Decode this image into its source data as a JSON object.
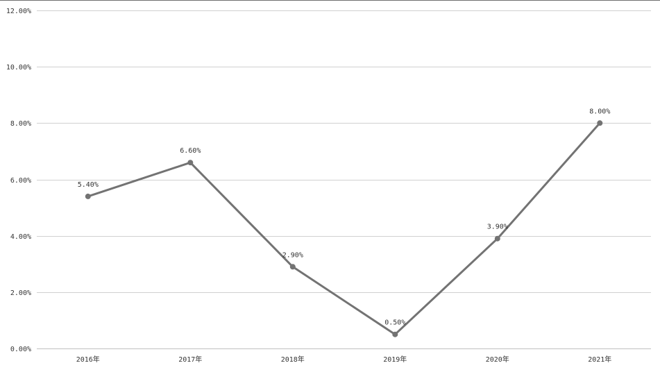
{
  "chart_data": {
    "type": "line",
    "categories": [
      "2016年",
      "2017年",
      "2018年",
      "2019年",
      "2020年",
      "2021年"
    ],
    "series": [
      {
        "values": [
          5.4,
          6.6,
          2.9,
          0.5,
          3.9,
          8.0
        ],
        "data_labels": [
          "5.40%",
          "6.60%",
          "2.90%",
          "0.50%",
          "3.90%",
          "8.00%"
        ]
      }
    ],
    "y_ticks": [
      0,
      2,
      4,
      6,
      8,
      10,
      12
    ],
    "y_tick_labels": [
      "0.00%",
      "2.00%",
      "4.00%",
      "6.00%",
      "8.00%",
      "10.00%",
      "12.00%"
    ],
    "ylim": [
      0,
      12
    ],
    "grid": true,
    "legend": "none",
    "title": "",
    "xlabel": "",
    "ylabel": "",
    "colors": {
      "line": "#737373",
      "grid": "#d0d0d0",
      "axis": "#bfbfbf",
      "text": "#333333"
    }
  }
}
